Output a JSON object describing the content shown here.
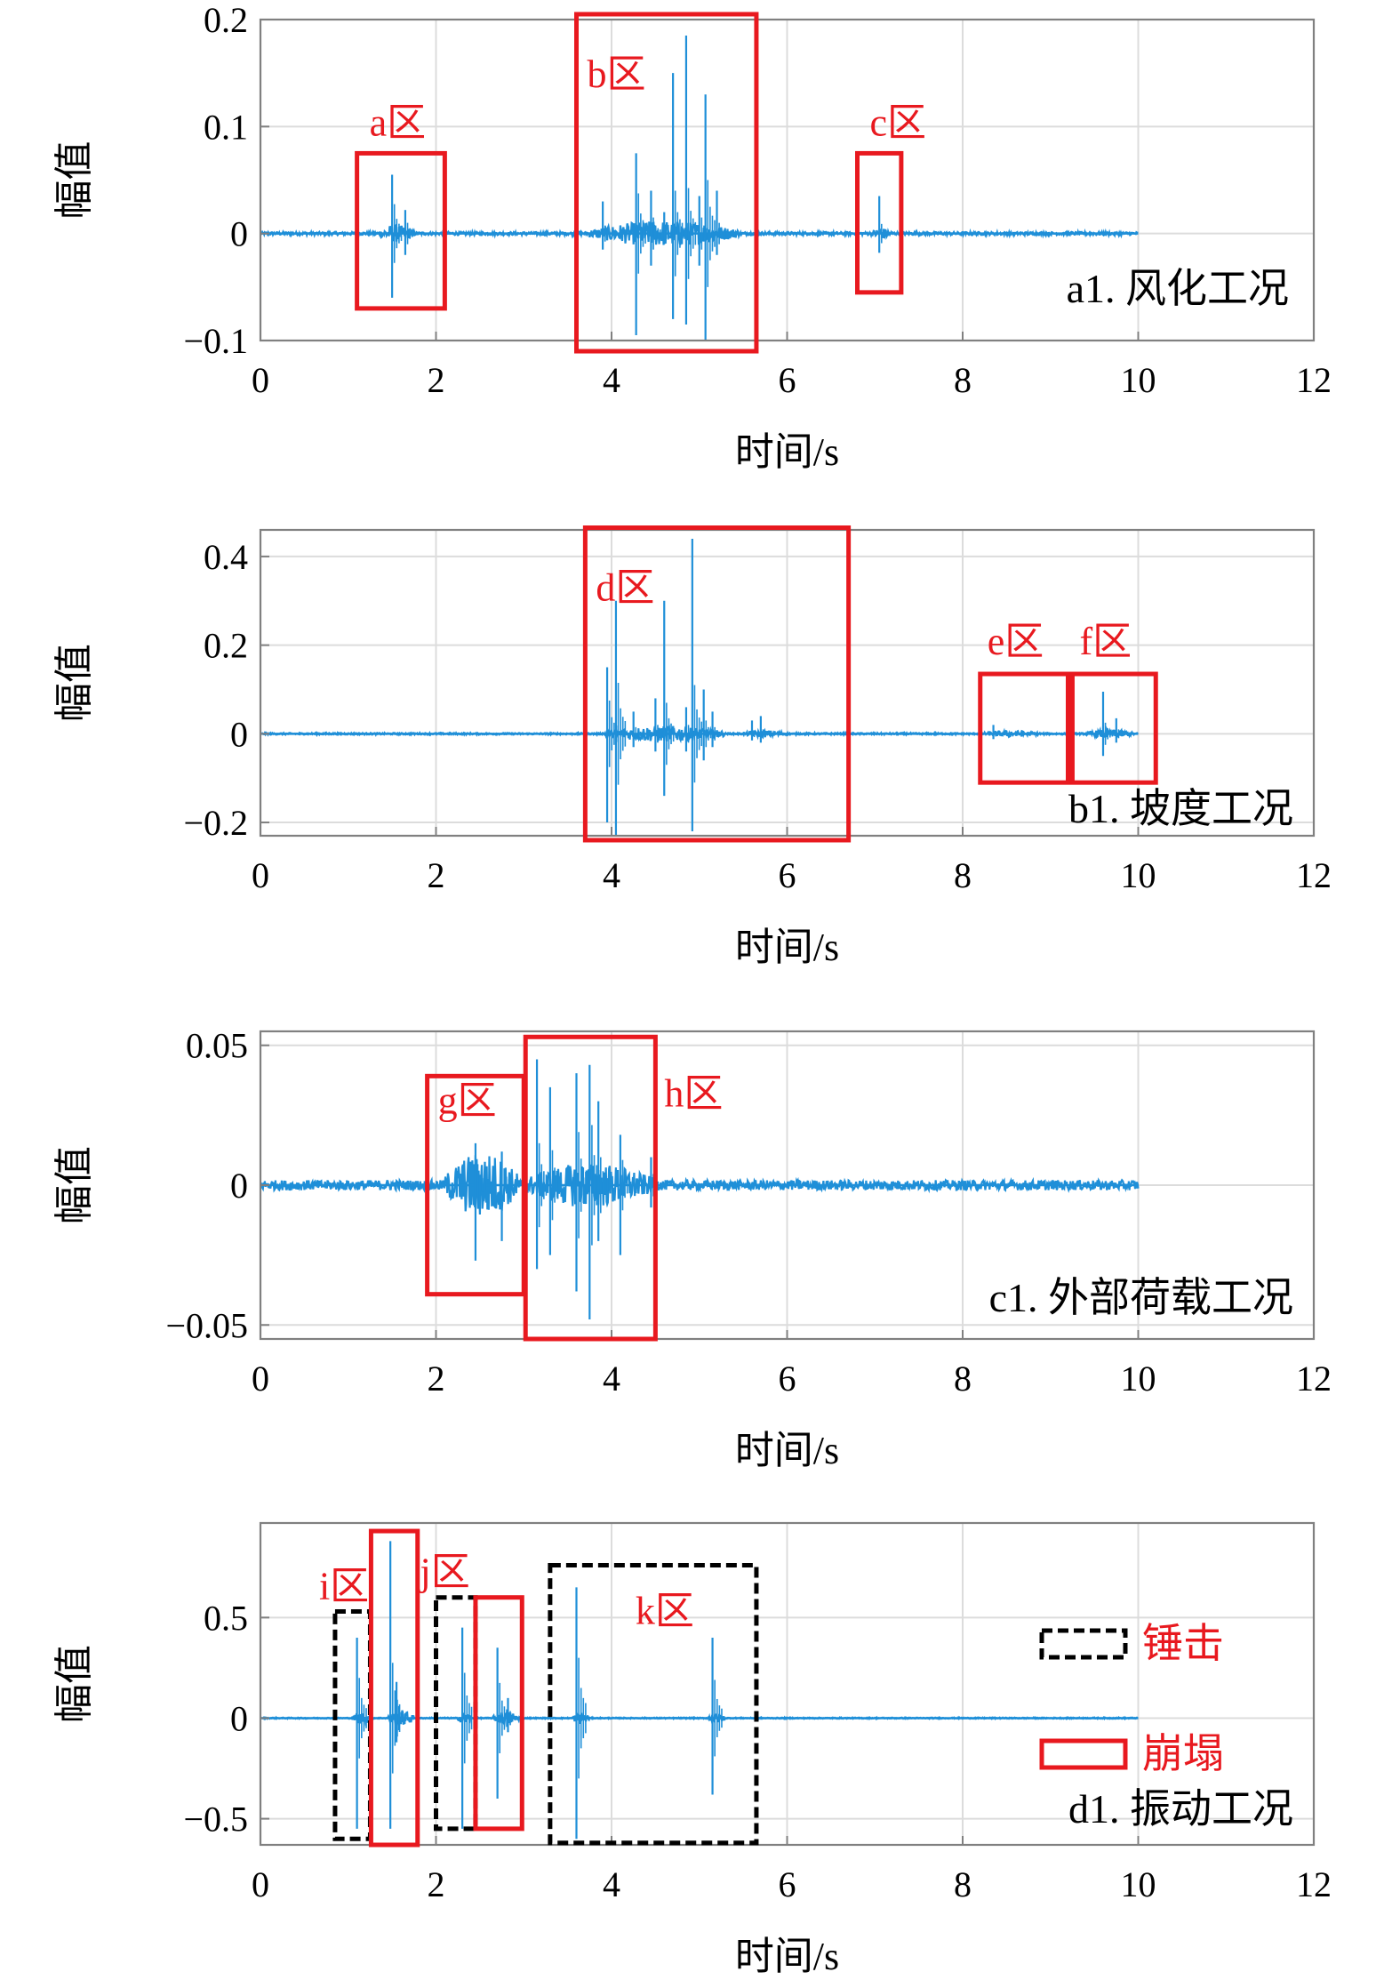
{
  "colors": {
    "signal": "#1f8fd8",
    "collapse_box": "#e8191f",
    "hammer_box": "#000000",
    "grid": "#dcdcdc",
    "axis": "#808080"
  },
  "legend": {
    "hammer": "锤击",
    "collapse": "崩塌"
  },
  "chart_data": [
    {
      "type": "line",
      "condition_label": "a1. 风化工况",
      "xlabel": "时间/s",
      "ylabel": "幅值",
      "xlim": [
        0,
        12
      ],
      "ylim": [
        -0.1,
        0.2
      ],
      "xticks": [
        "0",
        "2",
        "4",
        "6",
        "8",
        "10",
        "12"
      ],
      "yticks": [
        "0.2",
        "0.1",
        "0",
        "−0.1"
      ],
      "ytick_values": [
        0.2,
        0.1,
        0,
        -0.1
      ],
      "grid": true,
      "duration": 10,
      "spikes": [
        {
          "t": 1.5,
          "pos": 0.055,
          "neg": -0.06
        },
        {
          "t": 1.65,
          "pos": 0.022,
          "neg": -0.02
        },
        {
          "t": 3.9,
          "pos": 0.03,
          "neg": -0.015
        },
        {
          "t": 4.28,
          "pos": 0.075,
          "neg": -0.095
        },
        {
          "t": 4.45,
          "pos": 0.04,
          "neg": -0.03
        },
        {
          "t": 4.6,
          "pos": 0.02,
          "neg": -0.01
        },
        {
          "t": 4.7,
          "pos": 0.15,
          "neg": -0.08
        },
        {
          "t": 4.85,
          "pos": 0.185,
          "neg": -0.085
        },
        {
          "t": 5.0,
          "pos": 0.035,
          "neg": -0.03
        },
        {
          "t": 5.07,
          "pos": 0.13,
          "neg": -0.1
        },
        {
          "t": 5.2,
          "pos": 0.04,
          "neg": -0.02
        },
        {
          "t": 7.05,
          "pos": 0.035,
          "neg": -0.018
        }
      ],
      "noise_bursts": [
        {
          "t0": 1.35,
          "t1": 1.75,
          "amp": 0.008
        },
        {
          "t0": 3.75,
          "t1": 5.45,
          "amp": 0.012
        },
        {
          "t0": 6.95,
          "t1": 7.2,
          "amp": 0.005
        }
      ],
      "base_noise": 0.0015,
      "boxes": [
        {
          "label": "a区",
          "x0": 1.1,
          "x1": 2.1,
          "y0": -0.07,
          "y1": 0.075,
          "style": "collapse"
        },
        {
          "label": "b区",
          "x0": 3.6,
          "x1": 5.65,
          "y0": -0.11,
          "y1": 0.205,
          "style": "collapse"
        },
        {
          "label": "c区",
          "x0": 6.8,
          "x1": 7.3,
          "y0": -0.055,
          "y1": 0.075,
          "style": "collapse"
        }
      ]
    },
    {
      "type": "line",
      "condition_label": "b1. 坡度工况",
      "xlabel": "时间/s",
      "ylabel": "幅值",
      "xlim": [
        0,
        12
      ],
      "ylim": [
        -0.23,
        0.46
      ],
      "xticks": [
        "0",
        "2",
        "4",
        "6",
        "8",
        "10",
        "12"
      ],
      "yticks": [
        "0.4",
        "0.2",
        "0",
        "−0.2"
      ],
      "ytick_values": [
        0.4,
        0.2,
        0,
        -0.2
      ],
      "grid": true,
      "duration": 10,
      "spikes": [
        {
          "t": 3.95,
          "pos": 0.15,
          "neg": -0.2
        },
        {
          "t": 4.05,
          "pos": 0.3,
          "neg": -0.23
        },
        {
          "t": 4.25,
          "pos": 0.05,
          "neg": -0.03
        },
        {
          "t": 4.5,
          "pos": 0.08,
          "neg": -0.04
        },
        {
          "t": 4.6,
          "pos": 0.3,
          "neg": -0.14
        },
        {
          "t": 4.85,
          "pos": 0.06,
          "neg": -0.04
        },
        {
          "t": 4.92,
          "pos": 0.44,
          "neg": -0.22
        },
        {
          "t": 5.05,
          "pos": 0.1,
          "neg": -0.06
        },
        {
          "t": 5.15,
          "pos": 0.05,
          "neg": -0.03
        },
        {
          "t": 5.6,
          "pos": 0.03,
          "neg": -0.015
        },
        {
          "t": 5.7,
          "pos": 0.04,
          "neg": -0.02
        },
        {
          "t": 8.35,
          "pos": 0.02,
          "neg": -0.012
        },
        {
          "t": 9.6,
          "pos": 0.095,
          "neg": -0.05
        },
        {
          "t": 9.75,
          "pos": 0.035,
          "neg": -0.02
        }
      ],
      "noise_bursts": [
        {
          "t0": 3.9,
          "t1": 5.3,
          "amp": 0.018
        },
        {
          "t0": 5.5,
          "t1": 6.0,
          "amp": 0.008
        },
        {
          "t0": 8.2,
          "t1": 8.9,
          "amp": 0.007
        },
        {
          "t0": 9.4,
          "t1": 9.95,
          "amp": 0.01
        }
      ],
      "base_noise": 0.002,
      "boxes": [
        {
          "label": "d区",
          "x0": 3.7,
          "x1": 6.7,
          "y0": -0.24,
          "y1": 0.465,
          "style": "collapse"
        },
        {
          "label": "e区",
          "x0": 8.2,
          "x1": 9.2,
          "y0": -0.11,
          "y1": 0.135,
          "style": "collapse"
        },
        {
          "label": "f区",
          "x0": 9.25,
          "x1": 10.2,
          "y0": -0.11,
          "y1": 0.135,
          "style": "collapse"
        }
      ]
    },
    {
      "type": "line",
      "condition_label": "c1. 外部荷载工况",
      "xlabel": "时间/s",
      "ylabel": "幅值",
      "xlim": [
        0,
        12
      ],
      "ylim": [
        -0.055,
        0.055
      ],
      "xticks": [
        "0",
        "2",
        "4",
        "6",
        "8",
        "10",
        "12"
      ],
      "yticks": [
        "0.05",
        "0",
        "−0.05"
      ],
      "ytick_values": [
        0.05,
        0,
        -0.05
      ],
      "grid": true,
      "duration": 10,
      "spikes": [
        {
          "t": 2.45,
          "pos": 0.015,
          "neg": -0.027
        },
        {
          "t": 2.75,
          "pos": 0.012,
          "neg": -0.02
        },
        {
          "t": 3.15,
          "pos": 0.045,
          "neg": -0.03
        },
        {
          "t": 3.3,
          "pos": 0.035,
          "neg": -0.025
        },
        {
          "t": 3.6,
          "pos": 0.04,
          "neg": -0.038
        },
        {
          "t": 3.75,
          "pos": 0.043,
          "neg": -0.048
        },
        {
          "t": 3.85,
          "pos": 0.03,
          "neg": -0.02
        },
        {
          "t": 4.1,
          "pos": 0.018,
          "neg": -0.025
        },
        {
          "t": 4.45,
          "pos": 0.01,
          "neg": -0.008
        }
      ],
      "noise_bursts": [
        {
          "t0": 2.1,
          "t1": 2.95,
          "amp": 0.012
        },
        {
          "t0": 3.0,
          "t1": 4.5,
          "amp": 0.008
        }
      ],
      "base_noise": 0.0018,
      "boxes": [
        {
          "label": "g区",
          "x0": 1.9,
          "x1": 3.0,
          "y0": -0.039,
          "y1": 0.039,
          "style": "collapse"
        },
        {
          "label": "h区",
          "x0": 3.02,
          "x1": 4.5,
          "y0": -0.055,
          "y1": 0.053,
          "style": "collapse",
          "label_side": "right"
        }
      ]
    },
    {
      "type": "line",
      "condition_label": "d1. 振动工况",
      "xlabel": "时间/s",
      "ylabel": "幅值",
      "xlim": [
        0,
        12
      ],
      "ylim": [
        -0.63,
        0.97
      ],
      "xticks": [
        "0",
        "2",
        "4",
        "6",
        "8",
        "10",
        "12"
      ],
      "yticks": [
        "0.5",
        "0",
        "−0.5"
      ],
      "ytick_values": [
        0.5,
        0,
        -0.5
      ],
      "grid": true,
      "duration": 10,
      "spikes": [
        {
          "t": 1.1,
          "pos": 0.4,
          "neg": -0.55
        },
        {
          "t": 1.48,
          "pos": 0.88,
          "neg": -0.55
        },
        {
          "t": 1.55,
          "pos": 0.18,
          "neg": -0.12
        },
        {
          "t": 2.3,
          "pos": 0.45,
          "neg": -0.55
        },
        {
          "t": 2.7,
          "pos": 0.35,
          "neg": -0.4
        },
        {
          "t": 2.82,
          "pos": 0.1,
          "neg": -0.07
        },
        {
          "t": 3.6,
          "pos": 0.65,
          "neg": -0.6
        },
        {
          "t": 5.15,
          "pos": 0.4,
          "neg": -0.38
        }
      ],
      "noise_bursts": [
        {
          "t0": 1.05,
          "t1": 1.25,
          "amp": 0.03
        },
        {
          "t0": 1.45,
          "t1": 1.75,
          "amp": 0.04
        },
        {
          "t0": 2.25,
          "t1": 2.4,
          "amp": 0.03
        },
        {
          "t0": 2.65,
          "t1": 2.95,
          "amp": 0.035
        },
        {
          "t0": 3.55,
          "t1": 3.75,
          "amp": 0.03
        },
        {
          "t0": 5.1,
          "t1": 5.3,
          "amp": 0.025
        }
      ],
      "base_noise": 0.003,
      "boxes": [
        {
          "label": "i区",
          "x0": 0.85,
          "x1": 1.25,
          "y0": -0.6,
          "y1": 0.53,
          "style": "hammer"
        },
        {
          "label": "",
          "x0": 1.26,
          "x1": 1.79,
          "y0": -0.63,
          "y1": 0.93,
          "style": "collapse"
        },
        {
          "label": "j区",
          "x0": 2.0,
          "x1": 2.45,
          "y0": -0.55,
          "y1": 0.6,
          "style": "hammer"
        },
        {
          "label": "",
          "x0": 2.45,
          "x1": 2.98,
          "y0": -0.55,
          "y1": 0.6,
          "style": "collapse"
        },
        {
          "label": "k区",
          "x0": 3.3,
          "x1": 5.65,
          "y0": -0.62,
          "y1": 0.76,
          "style": "hammer"
        }
      ],
      "show_legend": true
    }
  ]
}
